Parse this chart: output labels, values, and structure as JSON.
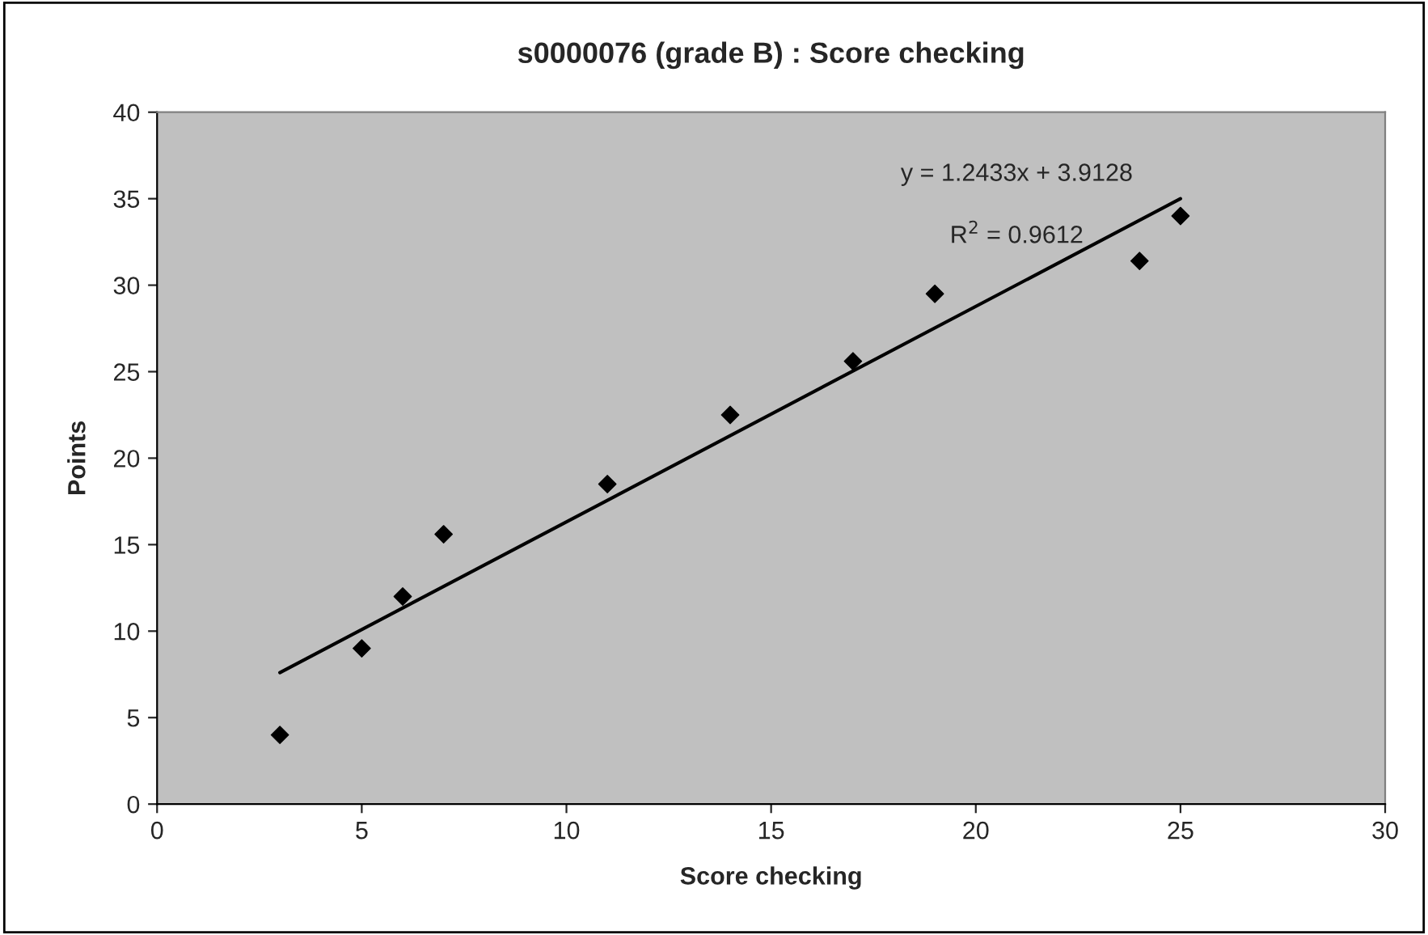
{
  "chart_data": {
    "type": "scatter",
    "title": "s0000076 (grade B) : Score checking",
    "xlabel": "Score checking",
    "ylabel": "Points",
    "xlim": [
      0,
      30
    ],
    "xticks": [
      0,
      5,
      10,
      15,
      20,
      25,
      30
    ],
    "ylim": [
      0,
      40
    ],
    "yticks": [
      0,
      5,
      10,
      15,
      20,
      25,
      30,
      35,
      40
    ],
    "grid": false,
    "legend": false,
    "series": [
      {
        "marker": "diamond",
        "color": "#000000",
        "x": [
          3,
          5,
          6,
          7,
          11,
          14,
          17,
          19,
          24,
          25
        ],
        "values": [
          4,
          9,
          12,
          15.6,
          18.5,
          22.5,
          25.6,
          29.5,
          31.4,
          34
        ]
      },
      {
        "type": "line",
        "color": "#000000",
        "x": [
          3,
          25
        ],
        "values": [
          7.6,
          35.0
        ],
        "marker": "none"
      }
    ],
    "annotations": [
      "y = 1.2433x + 3.9128",
      "R$^{2}$ = 0.9612"
    ]
  }
}
